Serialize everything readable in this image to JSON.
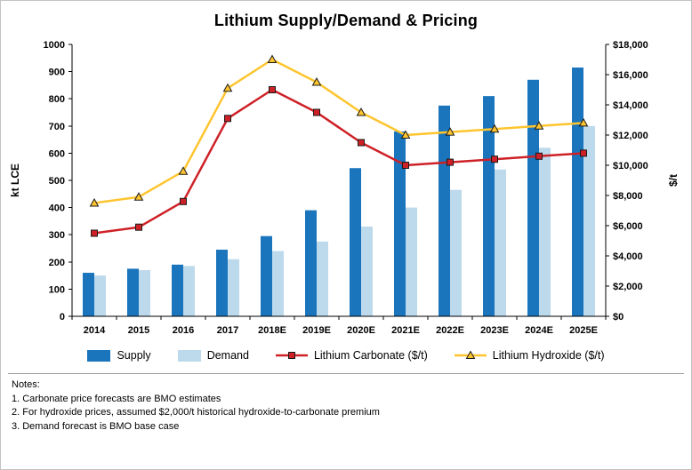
{
  "title": "Lithium Supply/Demand & Pricing",
  "colors": {
    "supply": "#1B75BC",
    "demand": "#BDD9EC",
    "carbonate": "#CE2127",
    "hydroxide": "#FFC52F",
    "marker_outline": "#1A1A1A",
    "axis": "#000000",
    "separator": "#9D9D9D"
  },
  "chart_data": {
    "type": "bar",
    "secondary_type": "line",
    "title": "Lithium Supply/Demand & Pricing",
    "grid": false,
    "legend_position": "bottom",
    "categories": [
      "2014",
      "2015",
      "2016",
      "2017",
      "2018E",
      "2019E",
      "2020E",
      "2021E",
      "2022E",
      "2023E",
      "2024E",
      "2025E"
    ],
    "bar_series": [
      {
        "name": "Supply",
        "axis": "left",
        "color_key": "supply",
        "values": [
          160,
          175,
          190,
          245,
          295,
          390,
          545,
          680,
          775,
          810,
          870,
          915
        ]
      },
      {
        "name": "Demand",
        "axis": "left",
        "color_key": "demand",
        "values": [
          150,
          170,
          185,
          210,
          240,
          275,
          330,
          400,
          465,
          540,
          620,
          700
        ]
      }
    ],
    "line_series": [
      {
        "name": "Lithium Carbonate ($/t)",
        "axis": "right",
        "color_key": "carbonate",
        "marker": "square",
        "values": [
          5500,
          5900,
          7600,
          13100,
          15000,
          13500,
          11500,
          10000,
          10200,
          10400,
          10600,
          10800
        ]
      },
      {
        "name": "Lithium Hydroxide ($/t)",
        "axis": "right",
        "color_key": "hydroxide",
        "marker": "triangle",
        "values": [
          7500,
          7900,
          9600,
          15100,
          17000,
          15500,
          13500,
          12000,
          12200,
          12400,
          12600,
          12800
        ]
      }
    ],
    "left_axis": {
      "label": "kt LCE",
      "min": 0,
      "max": 1000,
      "step": 100
    },
    "right_axis": {
      "label": "$/t",
      "min": 0,
      "max": 18000,
      "step": 2000,
      "prefix": "$"
    }
  },
  "notes": {
    "heading": "Notes:",
    "lines": [
      "1. Carbonate price forecasts are BMO estimates",
      "2. For hydroxide prices, assumed $2,000/t historical hydroxide-to-carbonate premium",
      "3. Demand forecast is BMO base case"
    ]
  }
}
